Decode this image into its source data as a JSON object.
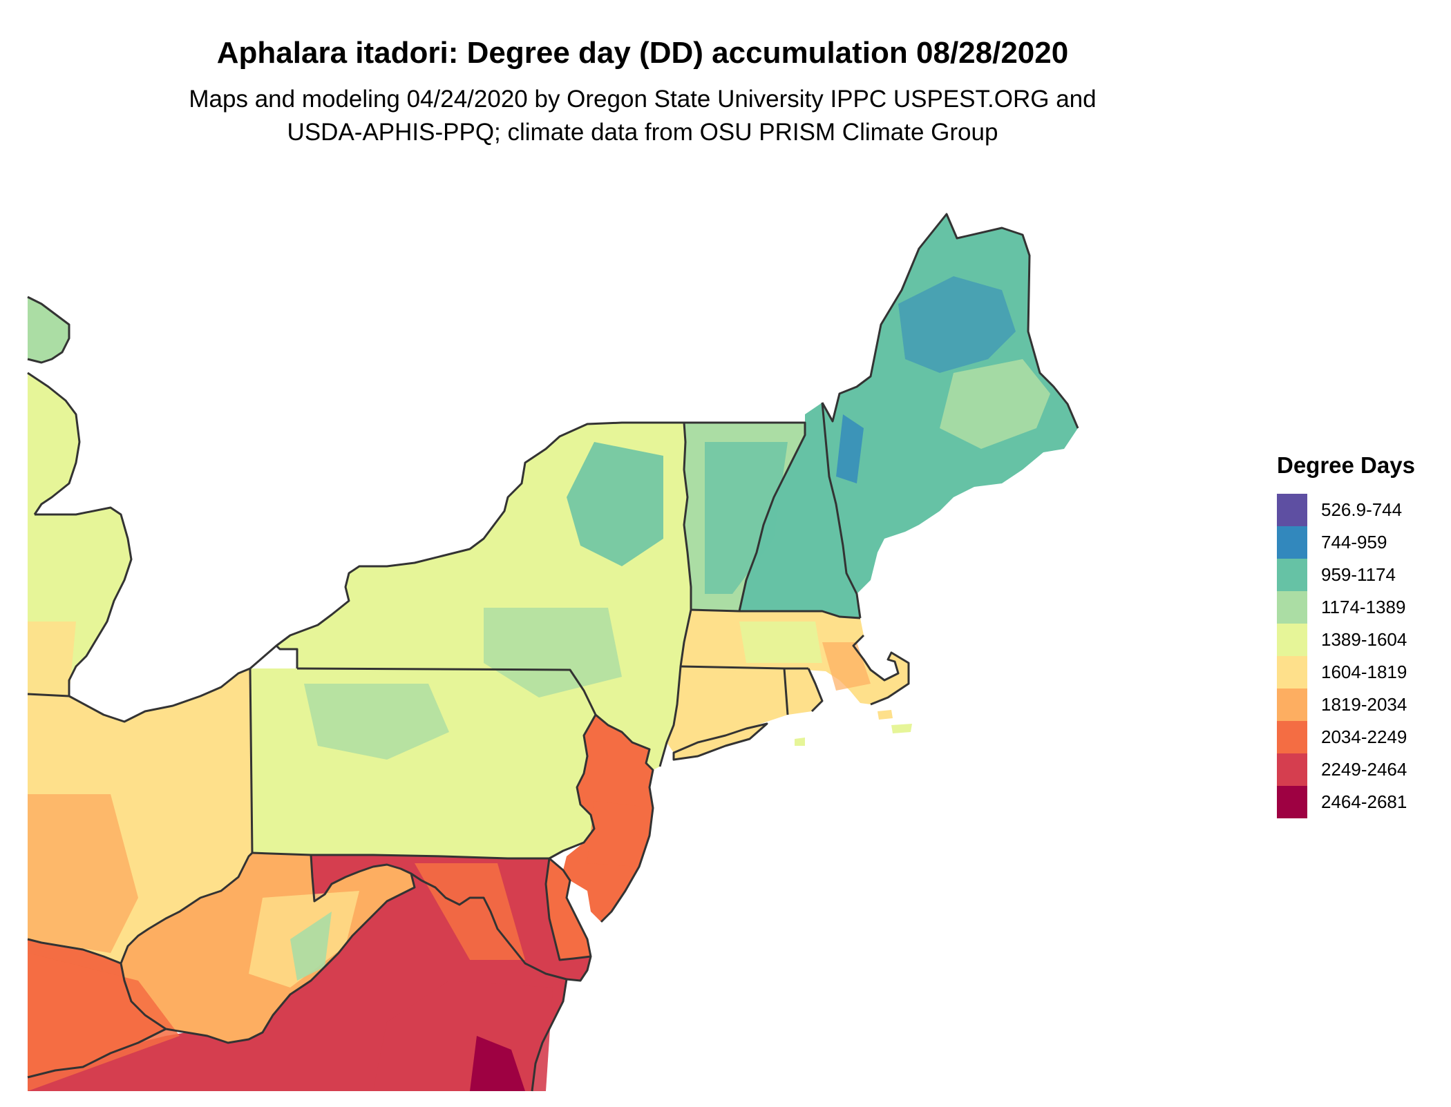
{
  "title": "Aphalara itadori: Degree day (DD) accumulation 08/28/2020",
  "subtitle_line1": "Maps and modeling 04/24/2020 by Oregon State University IPPC USPEST.ORG and",
  "subtitle_line2": "USDA-APHIS-PPQ; climate data from OSU PRISM Climate Group",
  "legend": {
    "title": "Degree Days",
    "items": [
      {
        "label": "526.9-744",
        "color": "#5e4fa2"
      },
      {
        "label": "744-959",
        "color": "#3288bd"
      },
      {
        "label": "959-1174",
        "color": "#66c2a5"
      },
      {
        "label": "1174-1389",
        "color": "#abdda4"
      },
      {
        "label": "1389-1604",
        "color": "#e6f598"
      },
      {
        "label": "1604-1819",
        "color": "#fee08b"
      },
      {
        "label": "1819-2034",
        "color": "#fdae61"
      },
      {
        "label": "2034-2249",
        "color": "#f46d43"
      },
      {
        "label": "2249-2464",
        "color": "#d53e4f"
      },
      {
        "label": "2464-2681",
        "color": "#9e0142"
      }
    ]
  },
  "map_regions": [
    {
      "name": "Maine",
      "class": "959-1174"
    },
    {
      "name": "New Hampshire",
      "class": "959-1174"
    },
    {
      "name": "Vermont",
      "class": "1174-1389"
    },
    {
      "name": "Massachusetts",
      "class": "1604-1819"
    },
    {
      "name": "Connecticut",
      "class": "1604-1819"
    },
    {
      "name": "Rhode Island",
      "class": "1604-1819"
    },
    {
      "name": "New York",
      "class": "1389-1604"
    },
    {
      "name": "New Jersey",
      "class": "2034-2249"
    },
    {
      "name": "Pennsylvania",
      "class": "1389-1604"
    },
    {
      "name": "Delaware",
      "class": "2034-2249"
    },
    {
      "name": "Maryland",
      "class": "2249-2464"
    },
    {
      "name": "West Virginia",
      "class": "1819-2034"
    },
    {
      "name": "Virginia",
      "class": "2249-2464"
    },
    {
      "name": "Ohio",
      "class": "1604-1819"
    },
    {
      "name": "Michigan",
      "class": "1389-1604"
    },
    {
      "name": "Kentucky",
      "class": "2034-2249"
    }
  ]
}
